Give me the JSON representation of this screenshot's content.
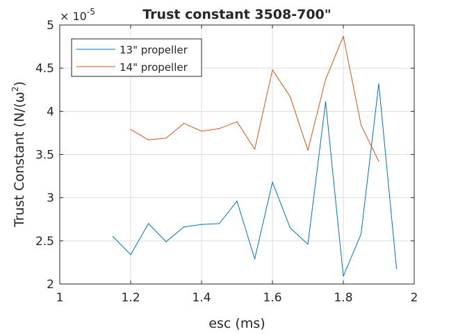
{
  "chart_data": {
    "type": "line",
    "title": "Trust constant 3508-700\"",
    "xlabel": "esc (ms)",
    "ylabel": "Trust Constant (N/(ω²)",
    "ylabel_base": "Trust Constant (N/(ω",
    "ylabel_sup": "2",
    "ylabel_close": ")",
    "xlim": [
      1,
      2
    ],
    "ylim": [
      2,
      5
    ],
    "y_exponent_base": "× 10",
    "y_exponent_power": "-5",
    "xticks": [
      "1",
      "1.2",
      "1.4",
      "1.6",
      "1.8",
      "2"
    ],
    "xtick_values": [
      1,
      1.2,
      1.4,
      1.6,
      1.8,
      2
    ],
    "yticks": [
      "2",
      "2.5",
      "3",
      "3.5",
      "4",
      "4.5",
      "5"
    ],
    "ytick_values": [
      2,
      2.5,
      3,
      3.5,
      4,
      4.5,
      5
    ],
    "grid": true,
    "legend_position": "top-left",
    "series": [
      {
        "name": "13\" propeller",
        "color": "#0072BD",
        "x": [
          1.15,
          1.2,
          1.25,
          1.3,
          1.35,
          1.4,
          1.45,
          1.5,
          1.55,
          1.6,
          1.65,
          1.7,
          1.75,
          1.8,
          1.85,
          1.9,
          1.95
        ],
        "y": [
          2.55,
          2.34,
          2.7,
          2.49,
          2.66,
          2.69,
          2.7,
          2.96,
          2.29,
          3.18,
          2.65,
          2.46,
          4.11,
          2.09,
          2.58,
          4.32,
          2.18
        ]
      },
      {
        "name": "14\" propeller",
        "color": "#D95319",
        "x": [
          1.2,
          1.25,
          1.3,
          1.35,
          1.4,
          1.45,
          1.5,
          1.55,
          1.6,
          1.65,
          1.7,
          1.75,
          1.8,
          1.85,
          1.9
        ],
        "y": [
          3.79,
          3.67,
          3.69,
          3.86,
          3.77,
          3.8,
          3.88,
          3.56,
          4.48,
          4.17,
          3.55,
          4.37,
          4.87,
          3.84,
          3.42
        ]
      }
    ]
  }
}
